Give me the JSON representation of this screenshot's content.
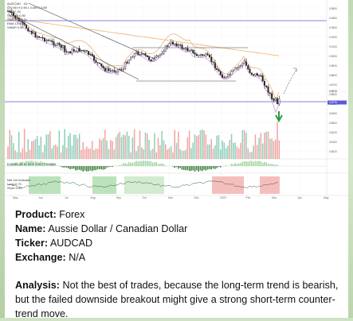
{
  "chart": {
    "legend_top": [
      "AUDCAD · 1D",
      "O 0.90 H 0.90 L 0.89 C 0.89",
      "Vol 27.1K",
      "SMA 50 0.90",
      "SMA 200 0.91",
      "EMA 13 0.90",
      "VWAP 0.90"
    ],
    "indicator_1_label": "EODHL 25 11 25 3 -0.0177 0.0034",
    "indicator_2_label": [
      "Net Vol Indicator",
      "Long 0.70",
      "Short 0.30"
    ],
    "price_axis": [
      "0.9500",
      "0.9400",
      "0.9300",
      "0.9200",
      "0.9100",
      "0.9000",
      "0.8900",
      "0.8800",
      "0.8700",
      "0.8600",
      "0.8500",
      "0.8400",
      "0.8300",
      "0.8200",
      "0.8100",
      "0.8000"
    ],
    "price_tags": [
      "0.8915",
      "0.8776"
    ],
    "time_axis": [
      "May",
      "Jun",
      "Jul",
      "Aug",
      "Sep",
      "Oct",
      "Nov",
      "Dec",
      "2023",
      "Feb",
      "Mar",
      "Apr",
      "May"
    ],
    "colors": {
      "up": "#26a69a",
      "down": "#ef5350",
      "candle": "#222222",
      "horizontal_line": "#5b5bd6",
      "arrow": "#2e9b3e"
    }
  },
  "caption": {
    "product_label": "Product:",
    "product_value": "Forex",
    "name_label": "Name:",
    "name_value": "Aussie Dollar / Canadian Dollar",
    "ticker_label": "Ticker:",
    "ticker_value": "AUDCAD",
    "exchange_label": "Exchange:",
    "exchange_value": "N/A",
    "analysis_label": "Analysis:",
    "analysis_value": "Not the best of trades, because the long-term trend is bearish, but the failed downside breakout might give a strong short-term counter-trend move."
  }
}
